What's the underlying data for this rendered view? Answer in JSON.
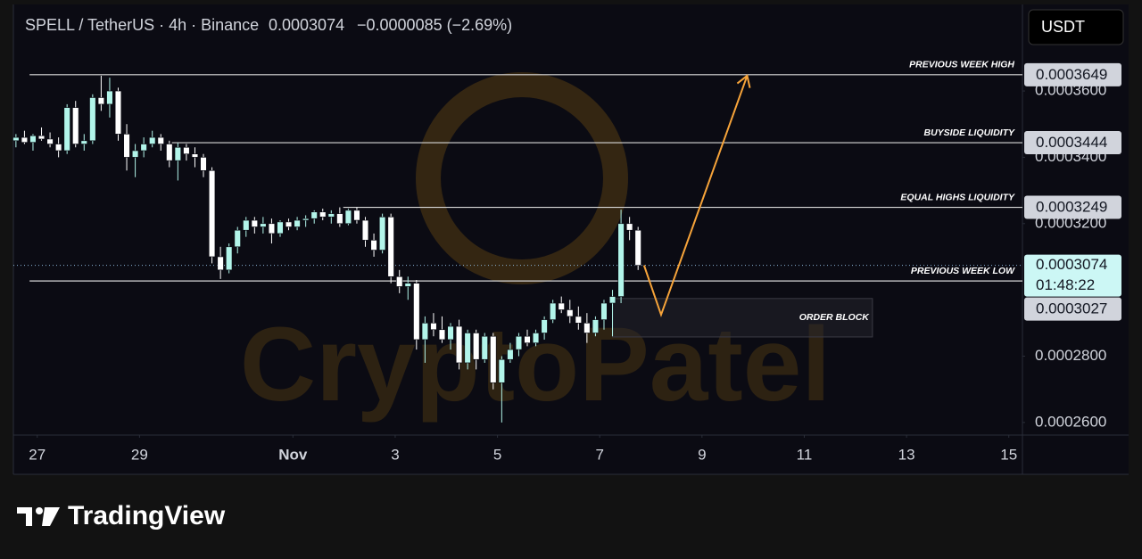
{
  "chart_data": {
    "type": "candlestick",
    "title": "SPELL / TetherUS · 4h · Binance",
    "last_price": 0.0003074,
    "change": "−0.0000085 (−2.69%)",
    "countdown": "01:48:22",
    "currency": "USDT",
    "watermark": "CryptoPatel",
    "brand": "TradingView",
    "up_color": "#b2f5ea",
    "down_color": "#ffffff",
    "open": [
      0.000345,
      0.000346,
      0.0003445,
      0.0003465,
      0.0003455,
      0.000344,
      0.000342,
      0.000355,
      0.000344,
      0.000345,
      0.000358,
      0.000356,
      0.00036,
      0.000347,
      0.00034,
      0.000342,
      0.000344,
      0.000346,
      0.000344,
      0.000339,
      0.000343,
      0.000341,
      0.00034,
      0.000336,
      0.00031,
      0.000306,
      0.000313,
      0.000318,
      0.000321,
      0.000319,
      0.00032,
      0.000317,
      0.0003205,
      0.000319,
      0.000321,
      0.0003215,
      0.0003235,
      0.000322,
      0.000323,
      0.00032,
      0.000324,
      0.000321,
      0.000315,
      0.000312,
      0.000322,
      0.000304,
      0.000301,
      0.000302,
      0.000285,
      0.00029,
      0.000288,
      0.000285,
      0.000289,
      0.000278,
      0.000287,
      0.000279,
      0.000286,
      0.000272,
      0.000279,
      0.000282,
      0.000286,
      0.000284,
      0.000287,
      0.000291,
      0.000296,
      0.000294,
      0.000292,
      0.00029,
      0.000287,
      0.000291,
      0.000296,
      0.000298,
      0.00032,
      0.000318
    ],
    "high": [
      0.000347,
      0.000348,
      0.000347,
      0.000349,
      0.0003475,
      0.000346,
      0.000356,
      0.000357,
      0.000347,
      0.000359,
      0.0003646,
      0.000364,
      0.000361,
      0.00035,
      0.000344,
      0.000346,
      0.000348,
      0.000347,
      0.000345,
      0.0003444,
      0.000344,
      0.000343,
      0.000341,
      0.000337,
      0.000313,
      0.000314,
      0.000319,
      0.000322,
      0.000322,
      0.000322,
      0.0003215,
      0.000321,
      0.0003215,
      0.000322,
      0.0003225,
      0.000324,
      0.0003245,
      0.000324,
      0.0003249,
      0.0003245,
      0.0003249,
      0.000322,
      0.000317,
      0.000323,
      0.000323,
      0.000306,
      0.000304,
      0.000303,
      0.000292,
      0.000293,
      0.000292,
      0.00029,
      0.000291,
      0.000288,
      0.000288,
      0.000287,
      0.000287,
      0.00028,
      0.000284,
      0.000287,
      0.000288,
      0.000288,
      0.000292,
      0.000297,
      0.000298,
      0.000297,
      0.000295,
      0.000293,
      0.000292,
      0.000297,
      0.0003,
      0.0003242,
      0.000322,
      0.000319
    ],
    "low": [
      0.000343,
      0.000344,
      0.000342,
      0.000345,
      0.000343,
      0.00034,
      0.000341,
      0.000343,
      0.000342,
      0.000344,
      0.000354,
      0.000352,
      0.000345,
      0.000336,
      0.000334,
      0.00034,
      0.000343,
      0.000342,
      0.000337,
      0.000333,
      0.000339,
      0.000337,
      0.000334,
      0.000308,
      0.0003033,
      0.000305,
      0.000311,
      0.000316,
      0.000317,
      0.000317,
      0.000314,
      0.000316,
      0.000318,
      0.000318,
      0.000319,
      0.00032,
      0.000321,
      0.00032,
      0.000319,
      0.0003195,
      0.00032,
      0.000313,
      0.00031,
      0.000311,
      0.000302,
      0.000299,
      0.000297,
      0.000282,
      0.000278,
      0.000286,
      0.000284,
      0.000282,
      0.000276,
      0.000276,
      0.000276,
      0.000278,
      0.00027,
      0.00026,
      0.000278,
      0.00028,
      0.000283,
      0.000283,
      0.000285,
      0.00029,
      0.000293,
      0.00029,
      0.000288,
      0.000284,
      0.000286,
      0.000288,
      0.000286,
      0.000296,
      0.000315,
      0.000306
    ],
    "close": [
      0.000346,
      0.0003445,
      0.0003465,
      0.0003455,
      0.000344,
      0.000342,
      0.000355,
      0.000344,
      0.000345,
      0.000358,
      0.000356,
      0.00036,
      0.000347,
      0.00034,
      0.000342,
      0.000344,
      0.000346,
      0.000344,
      0.000339,
      0.000343,
      0.000341,
      0.00034,
      0.000336,
      0.00031,
      0.000306,
      0.000313,
      0.000318,
      0.000321,
      0.000319,
      0.00032,
      0.000317,
      0.0003205,
      0.000319,
      0.000321,
      0.0003215,
      0.0003235,
      0.000322,
      0.000323,
      0.00032,
      0.000324,
      0.000321,
      0.000315,
      0.000312,
      0.000322,
      0.000304,
      0.000301,
      0.000302,
      0.000285,
      0.00029,
      0.000288,
      0.000285,
      0.000289,
      0.000278,
      0.000287,
      0.000279,
      0.000286,
      0.000272,
      0.000279,
      0.000282,
      0.000286,
      0.000284,
      0.000287,
      0.000291,
      0.000296,
      0.000294,
      0.000292,
      0.00029,
      0.000287,
      0.000291,
      0.000296,
      0.000298,
      0.00032,
      0.000318,
      0.0003074
    ],
    "xlim": [
      -0.3,
      118.1
    ],
    "xticks": [
      {
        "value": 2.5,
        "label": "27"
      },
      {
        "value": 14.5,
        "label": "29"
      },
      {
        "value": 32.5,
        "label": "Nov"
      },
      {
        "value": 44.5,
        "label": "3"
      },
      {
        "value": 56.5,
        "label": "5"
      },
      {
        "value": 68.5,
        "label": "7"
      },
      {
        "value": 80.5,
        "label": "9"
      },
      {
        "value": 92.5,
        "label": "11"
      },
      {
        "value": 104.5,
        "label": "13"
      },
      {
        "value": 116.5,
        "label": "15"
      }
    ],
    "ylim": [
      0.0002562,
      0.0003861
    ],
    "yticks": [
      {
        "value": 0.00026,
        "label": "0.0002600"
      },
      {
        "value": 0.00028,
        "label": "0.0002800"
      },
      {
        "value": 0.00032,
        "label": "0.0003200"
      },
      {
        "value": 0.00034,
        "label": "0.0003400"
      },
      {
        "value": 0.00036,
        "label": "0.0003600"
      }
    ],
    "levels": [
      {
        "label": "PREVIOUS WEEK HIGH",
        "value": 0.0003649,
        "x0": 1.6
      },
      {
        "label": "BUYSIDE LIQUIDITY",
        "value": 0.0003444,
        "x0": 18.3
      },
      {
        "label": "EQUAL HIGHS LIQUIDITY",
        "value": 0.0003249,
        "x0": 38.4
      },
      {
        "label": "PREVIOUS WEEK LOW",
        "value": 0.0003027,
        "x0": 1.6
      }
    ],
    "order_block": {
      "label": "ORDER BLOCK",
      "x": [
        70,
        100.5
      ],
      "y": [
        0.0002858,
        0.0002974
      ]
    },
    "projection": {
      "color": "#f7a43a",
      "x": [
        73.7,
        75.7,
        85.8
      ],
      "y": [
        0.0003074,
        0.0002925,
        0.0003646
      ]
    }
  }
}
